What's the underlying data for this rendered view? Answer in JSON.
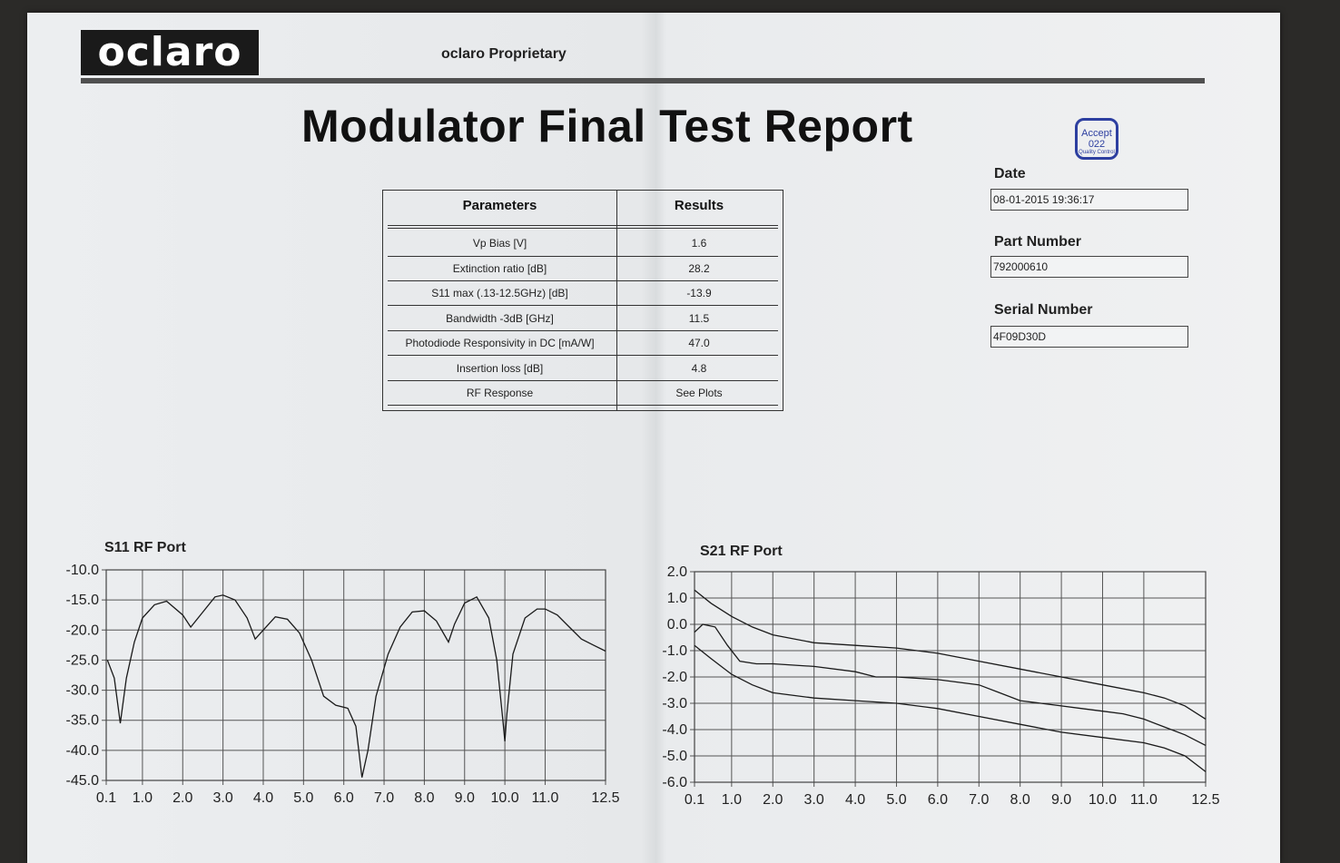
{
  "header": {
    "logo_text": "oclaro",
    "proprietary": "oclaro Proprietary",
    "title": "Modulator Final Test Report",
    "stamp": {
      "line1": "Accept",
      "line2": "022",
      "line3": "Quality Control"
    }
  },
  "table": {
    "col_param": "Parameters",
    "col_result": "Results",
    "rows": [
      {
        "param": "Vp Bias [V]",
        "result": "1.6"
      },
      {
        "param": "Extinction ratio [dB]",
        "result": "28.2"
      },
      {
        "param": "S11 max (.13-12.5GHz) [dB]",
        "result": "-13.9"
      },
      {
        "param": "Bandwidth -3dB [GHz]",
        "result": "11.5"
      },
      {
        "param": "Photodiode Responsivity in DC [mA/W]",
        "result": "47.0"
      },
      {
        "param": "Insertion loss [dB]",
        "result": "4.8"
      },
      {
        "param": "RF Response",
        "result": "See Plots"
      }
    ]
  },
  "fields": {
    "date_label": "Date",
    "date_value": "08-01-2015 19:36:17",
    "part_label": "Part Number",
    "part_value": "792000610",
    "serial_label": "Serial Number",
    "serial_value": "4F09D30D"
  },
  "chart_data": [
    {
      "type": "line",
      "title": "S11 RF Port",
      "xlabel": "",
      "ylabel": "",
      "xlim": [
        0.1,
        12.5
      ],
      "ylim": [
        -45.0,
        -10.0
      ],
      "x_ticks": [
        "0.1",
        "1.0",
        "2.0",
        "3.0",
        "4.0",
        "5.0",
        "6.0",
        "7.0",
        "8.0",
        "9.0",
        "10.0",
        "11.0",
        "12.5"
      ],
      "y_ticks": [
        "-10.0",
        "-15.0",
        "-20.0",
        "-25.0",
        "-30.0",
        "-35.0",
        "-40.0",
        "-45.0"
      ],
      "grid": true,
      "series": [
        {
          "x": [
            0.13,
            0.3,
            0.45,
            0.6,
            0.8,
            1.0,
            1.3,
            1.6,
            2.0,
            2.2,
            2.5,
            2.8,
            3.0,
            3.3,
            3.6,
            3.8,
            4.0,
            4.3,
            4.6,
            4.9,
            5.2,
            5.5,
            5.8,
            6.1,
            6.3,
            6.45,
            6.6,
            6.8,
            7.1,
            7.4,
            7.7,
            8.0,
            8.3,
            8.6,
            8.75,
            9.0,
            9.3,
            9.6,
            9.8,
            9.95,
            10.0,
            10.05,
            10.2,
            10.5,
            10.8,
            11.0,
            11.3,
            11.6,
            11.9,
            12.2,
            12.5
          ],
          "values": [
            -25,
            -28,
            -35.5,
            -28,
            -22,
            -18,
            -15.8,
            -15.2,
            -17.5,
            -19.5,
            -17,
            -14.5,
            -14.2,
            -15,
            -18,
            -21.5,
            -20,
            -17.8,
            -18.2,
            -20.5,
            -25,
            -31,
            -32.5,
            -33,
            -36,
            -44.5,
            -40,
            -31,
            -24,
            -19.5,
            -17,
            -16.8,
            -18.5,
            -22,
            -19,
            -15.5,
            -14.5,
            -18,
            -25,
            -35,
            -38.5,
            -34,
            -24,
            -18,
            -16.5,
            -16.5,
            -17.5,
            -19.5,
            -21.5,
            -22.5,
            -23.5
          ]
        }
      ]
    },
    {
      "type": "line",
      "title": "S21 RF Port",
      "xlabel": "",
      "ylabel": "",
      "xlim": [
        0.1,
        12.5
      ],
      "ylim": [
        -6.0,
        2.0
      ],
      "x_ticks": [
        "0.1",
        "1.0",
        "2.0",
        "3.0",
        "4.0",
        "5.0",
        "6.0",
        "7.0",
        "8.0",
        "9.0",
        "10.0",
        "11.0",
        "12.5"
      ],
      "y_ticks": [
        "2.0",
        "1.0",
        "0.0",
        "-1.0",
        "-2.0",
        "-3.0",
        "-4.0",
        "-5.0",
        "-6.0"
      ],
      "grid": true,
      "series": [
        {
          "x": [
            0.1,
            0.5,
            1.0,
            1.5,
            2.0,
            3.0,
            4.0,
            5.0,
            6.0,
            7.0,
            8.0,
            9.0,
            10.0,
            11.0,
            11.5,
            12.0,
            12.5
          ],
          "values": [
            1.3,
            0.8,
            0.3,
            -0.1,
            -0.4,
            -0.7,
            -0.8,
            -0.9,
            -1.1,
            -1.4,
            -1.7,
            -2.0,
            -2.3,
            -2.6,
            -2.8,
            -3.1,
            -3.6
          ]
        },
        {
          "x": [
            0.1,
            0.3,
            0.6,
            0.9,
            1.2,
            1.6,
            2.0,
            3.0,
            4.0,
            4.5,
            5.0,
            6.0,
            7.0,
            7.5,
            8.0,
            8.5,
            9.0,
            9.5,
            10.0,
            10.5,
            11.0,
            11.5,
            12.0,
            12.5
          ],
          "values": [
            -0.3,
            0,
            -0.1,
            -0.8,
            -1.4,
            -1.5,
            -1.5,
            -1.6,
            -1.8,
            -2.0,
            -2.0,
            -2.1,
            -2.3,
            -2.6,
            -2.9,
            -3.0,
            -3.1,
            -3.2,
            -3.3,
            -3.4,
            -3.6,
            -3.9,
            -4.2,
            -4.6
          ]
        },
        {
          "x": [
            0.1,
            0.5,
            1.0,
            1.5,
            2.0,
            3.0,
            4.0,
            5.0,
            6.0,
            7.0,
            8.0,
            9.0,
            10.0,
            11.0,
            11.5,
            12.0,
            12.5
          ],
          "values": [
            -0.8,
            -1.3,
            -1.9,
            -2.3,
            -2.6,
            -2.8,
            -2.9,
            -3.0,
            -3.2,
            -3.5,
            -3.8,
            -4.1,
            -4.3,
            -4.5,
            -4.7,
            -5.0,
            -5.6
          ]
        }
      ]
    }
  ]
}
